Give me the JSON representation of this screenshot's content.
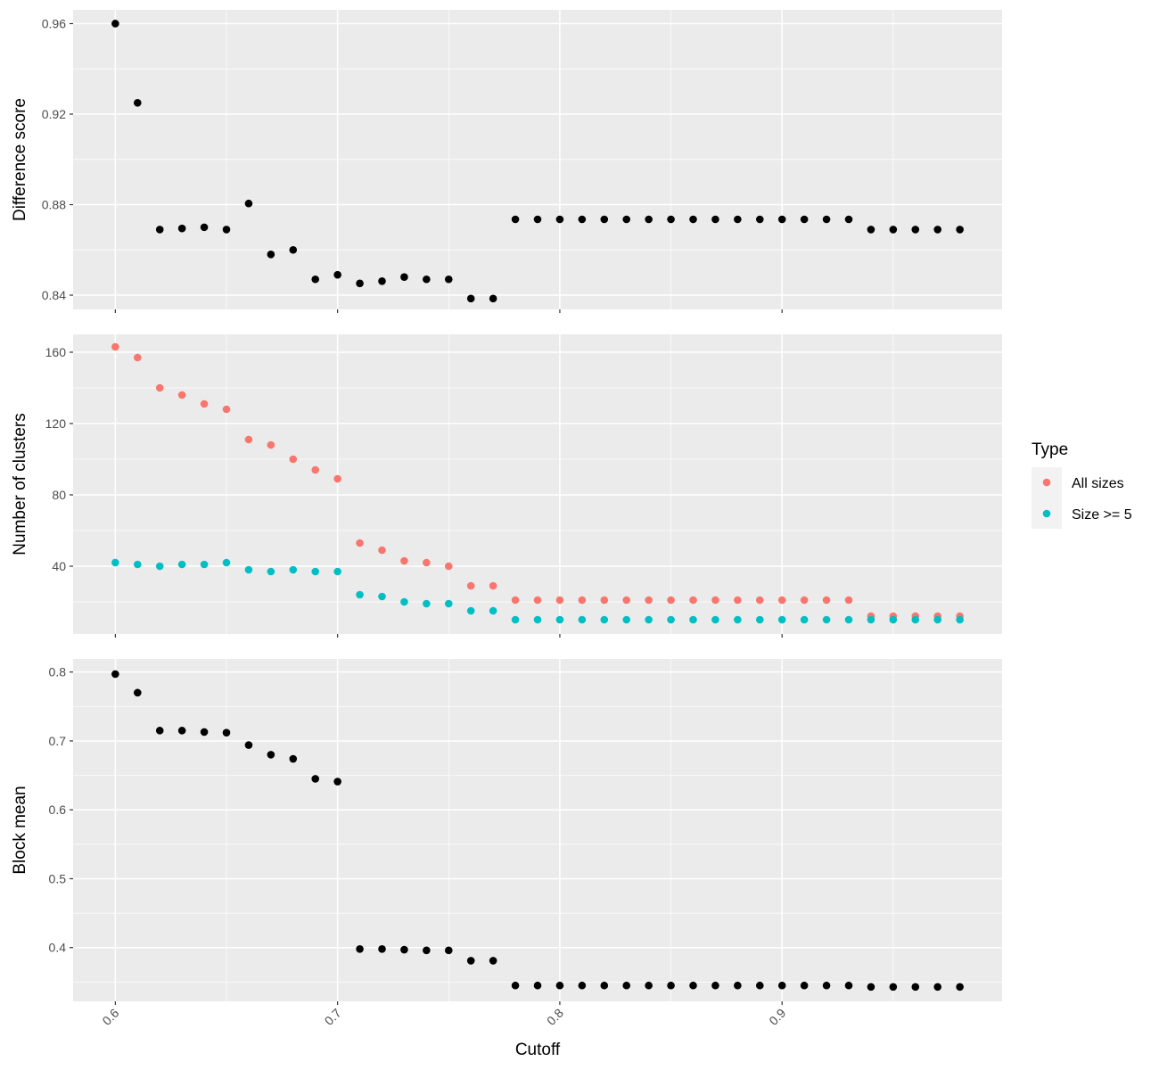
{
  "chart_data": {
    "type": "scatter",
    "xlabel": "Cutoff",
    "x": [
      0.6,
      0.61,
      0.62,
      0.63,
      0.64,
      0.65,
      0.66,
      0.67,
      0.68,
      0.69,
      0.7,
      0.71,
      0.72,
      0.73,
      0.74,
      0.75,
      0.76,
      0.77,
      0.78,
      0.79,
      0.8,
      0.81,
      0.82,
      0.83,
      0.84,
      0.85,
      0.86,
      0.87,
      0.88,
      0.89,
      0.9,
      0.91,
      0.92,
      0.93,
      0.94,
      0.95,
      0.96,
      0.97,
      0.98
    ],
    "xlim": [
      0.581,
      0.999
    ],
    "xticks": [
      "0.6",
      "0.7",
      "0.8",
      "0.9"
    ],
    "xtick_values": [
      0.6,
      0.7,
      0.8,
      0.9
    ],
    "grid": true,
    "panels": [
      {
        "ylabel": "Difference score",
        "ylim": [
          0.8337,
          0.9661
        ],
        "yticks": [
          "0.84",
          "0.88",
          "0.92",
          "0.96"
        ],
        "ytick_values": [
          0.84,
          0.88,
          0.92,
          0.96
        ],
        "series": [
          {
            "color": "#000000",
            "values": [
              0.96,
              0.925,
              0.869,
              0.8695,
              0.87,
              0.869,
              0.8805,
              0.858,
              0.86,
              0.847,
              0.849,
              0.8452,
              0.8462,
              0.848,
              0.847,
              0.847,
              0.8385,
              0.8385,
              0.8735,
              0.8735,
              0.8735,
              0.8735,
              0.8735,
              0.8735,
              0.8735,
              0.8735,
              0.8735,
              0.8735,
              0.8735,
              0.8735,
              0.8735,
              0.8735,
              0.8735,
              0.8735,
              0.869,
              0.869,
              0.869,
              0.869,
              0.869
            ]
          }
        ]
      },
      {
        "ylabel": "Number of clusters",
        "ylim": [
          2.0,
          170.0
        ],
        "yticks": [
          "40",
          "80",
          "120",
          "160"
        ],
        "ytick_values": [
          40,
          80,
          120,
          160
        ],
        "series": [
          {
            "name": "All sizes",
            "color": "#f8766d",
            "values": [
              163,
              157,
              140,
              136,
              131,
              128,
              111,
              108,
              100,
              94,
              89,
              53,
              49,
              43,
              42,
              40,
              29,
              29,
              21,
              21,
              21,
              21,
              21,
              21,
              21,
              21,
              21,
              21,
              21,
              21,
              21,
              21,
              21,
              21,
              12,
              12,
              12,
              12,
              12
            ]
          },
          {
            "name": "Size >= 5",
            "color": "#00bfc4",
            "values": [
              42,
              41,
              40,
              41,
              41,
              42,
              38,
              37,
              38,
              37,
              37,
              24,
              23,
              20,
              19,
              19,
              15,
              15,
              10,
              10,
              10,
              10,
              10,
              10,
              10,
              10,
              10,
              10,
              10,
              10,
              10,
              10,
              10,
              10,
              10,
              10,
              10,
              10,
              10
            ]
          }
        ]
      },
      {
        "ylabel": "Block mean",
        "ylim": [
          0.322,
          0.819
        ],
        "yticks": [
          "0.4",
          "0.5",
          "0.6",
          "0.7",
          "0.8"
        ],
        "ytick_values": [
          0.4,
          0.5,
          0.6,
          0.7,
          0.8
        ],
        "series": [
          {
            "color": "#000000",
            "values": [
              0.797,
              0.77,
              0.715,
              0.715,
              0.713,
              0.712,
              0.694,
              0.68,
              0.674,
              0.645,
              0.641,
              0.398,
              0.398,
              0.397,
              0.396,
              0.396,
              0.381,
              0.381,
              0.345,
              0.345,
              0.345,
              0.345,
              0.345,
              0.345,
              0.345,
              0.345,
              0.345,
              0.345,
              0.345,
              0.345,
              0.345,
              0.345,
              0.345,
              0.345,
              0.343,
              0.343,
              0.343,
              0.343,
              0.343
            ]
          }
        ]
      }
    ],
    "legend": {
      "title": "Type",
      "position": "right",
      "entries": [
        {
          "label": "All sizes",
          "color": "#f8766d"
        },
        {
          "label": "Size >= 5",
          "color": "#00bfc4"
        }
      ]
    }
  }
}
